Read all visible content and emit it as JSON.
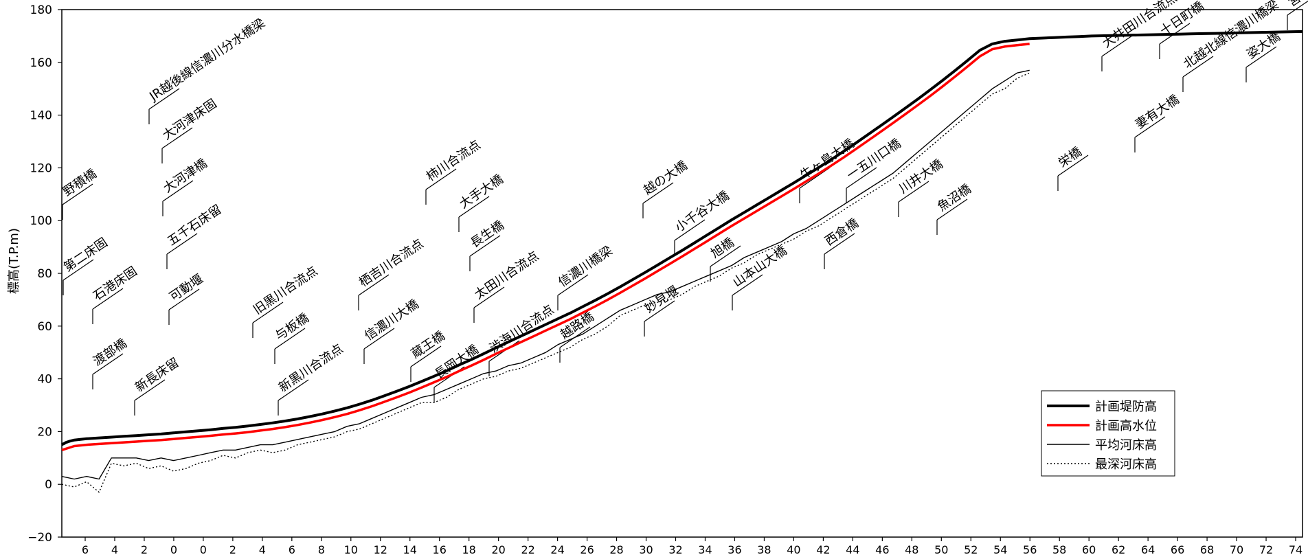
{
  "chart_data": {
    "type": "line",
    "title": "",
    "ylabel": "標高(T.P.m)",
    "xlabel": "",
    "ylim": [
      -20,
      180
    ],
    "yticks": [
      -20,
      0,
      20,
      40,
      60,
      80,
      100,
      120,
      140,
      160,
      180
    ],
    "x_tick_labels": [
      "6",
      "4",
      "2",
      "0",
      "0",
      "2",
      "4",
      "6",
      "8",
      "10",
      "12",
      "14",
      "16",
      "18",
      "20",
      "22",
      "24",
      "26",
      "28",
      "30",
      "32",
      "34",
      "36",
      "38",
      "40",
      "42",
      "44",
      "46",
      "48",
      "50",
      "52",
      "54",
      "56",
      "58",
      "60",
      "62",
      "64",
      "66",
      "68",
      "70",
      "72",
      "74"
    ],
    "x_note": "distance axis (km); left segment counts down 6→0 on a branch, main segment 0→74",
    "legend": {
      "position": "lower-right",
      "items": [
        {
          "name": "計画堤防高",
          "color": "#000000",
          "style": "thick-solid"
        },
        {
          "name": "計画高水位",
          "color": "#ff0000",
          "style": "thick-solid"
        },
        {
          "name": "平均河床高",
          "color": "#000000",
          "style": "thin-solid"
        },
        {
          "name": "最深河床高",
          "color": "#000000",
          "style": "dotted"
        }
      ]
    },
    "grid": false,
    "landmark_labels": [
      "野積橋",
      "第二床固",
      "石港床固",
      "渡部橋",
      "JR越後線信濃川分水橋梁",
      "大河津床固",
      "大河津橋",
      "五千石床留",
      "可動堰",
      "新長床留",
      "旧黒川合流点",
      "与板橋",
      "新黒川合流点",
      "栖吉川合流点",
      "信濃川大橋",
      "蔵王橋",
      "柿川合流点",
      "大手大橋",
      "長生橋",
      "太田川合流点",
      "長岡大橋",
      "渋海川合流点",
      "信濃川橋梁",
      "越路橋",
      "越の大橋",
      "小千谷大橋",
      "妙見堰",
      "旭橋",
      "山本山大橋",
      "牛ヶ島大橋",
      "一五川口橋",
      "西倉橋",
      "川井大橋",
      "魚沼橋",
      "栄橋",
      "大井田川合流点",
      "十日町橋",
      "妻有大橋",
      "北越北線信濃川橋梁",
      "姿大橋",
      "宮中橋"
    ],
    "series": [
      {
        "name": "計画堤防高",
        "x": [
          0,
          1,
          2,
          3,
          4,
          6,
          10,
          20,
          30,
          40,
          50,
          60,
          70,
          80,
          90,
          100,
          110,
          120,
          130,
          140,
          150,
          160,
          170,
          180,
          190,
          200,
          210,
          220,
          230,
          240,
          250,
          260,
          270,
          280,
          290,
          300,
          310,
          320,
          330,
          340,
          350,
          360,
          370,
          380,
          390,
          400,
          410,
          420,
          430,
          440,
          450,
          460,
          470,
          480,
          490,
          500,
          510,
          520,
          530,
          540,
          550,
          560,
          570,
          580,
          590,
          600,
          610,
          620,
          630,
          640,
          650,
          660,
          670,
          680,
          690,
          700,
          710,
          720,
          730,
          740,
          750,
          760,
          770,
          780,
          790,
          800,
          810,
          820,
          830,
          840,
          850,
          860,
          870,
          880,
          890,
          900,
          910,
          920,
          930,
          940,
          950,
          960,
          970,
          980,
          990,
          1000
        ],
        "y": [
          15.0,
          15.3,
          15.5,
          15.8,
          16.0,
          16.3,
          16.8,
          17.3,
          17.6,
          17.9,
          18.2,
          18.5,
          18.8,
          19.1,
          19.5,
          19.9,
          20.3,
          20.7,
          21.2,
          21.6,
          22.1,
          22.7,
          23.3,
          24.0,
          24.8,
          25.7,
          26.7,
          27.8,
          29.0,
          30.4,
          31.9,
          33.6,
          35.3,
          37.1,
          39.0,
          41.0,
          43.0,
          45.2,
          47.3,
          49.5,
          51.8,
          54.0,
          56.2,
          58.4,
          60.6,
          62.8,
          65.0,
          67.4,
          69.8,
          72.3,
          74.9,
          77.6,
          80.3,
          83.1,
          85.9,
          88.7,
          91.6,
          94.5,
          97.4,
          100.3,
          103.1,
          105.9,
          108.7,
          111.5,
          114.3,
          117.2,
          120.1,
          123.1,
          126.2,
          129.4,
          132.7,
          136.0,
          139.3,
          142.7,
          146.1,
          149.6,
          153.2,
          156.9,
          160.7,
          164.6,
          167.0,
          168.0,
          168.5,
          169.0,
          169.2,
          169.4,
          169.6,
          169.8,
          170.0,
          170.1,
          170.2,
          170.3,
          170.4,
          170.5,
          170.6,
          170.7,
          170.8,
          170.9,
          171.0,
          171.1,
          171.2,
          171.3,
          171.4,
          171.5,
          171.6,
          171.7
        ]
      },
      {
        "name": "計画高水位",
        "x": [
          0,
          10,
          20,
          30,
          40,
          50,
          60,
          70,
          80,
          90,
          100,
          110,
          120,
          130,
          140,
          150,
          160,
          170,
          180,
          190,
          200,
          210,
          220,
          230,
          240,
          250,
          260,
          270,
          280,
          290,
          300,
          310,
          320,
          330,
          340,
          350,
          360,
          370,
          380,
          390,
          400,
          410,
          420,
          430,
          440,
          450,
          460,
          470,
          480,
          490,
          500,
          510,
          520,
          530,
          540,
          550,
          560,
          570,
          580,
          590,
          600,
          610,
          620,
          630,
          640,
          650,
          660,
          670,
          680,
          690,
          700,
          710,
          720,
          730,
          740,
          750,
          760,
          770,
          780
        ],
        "y": [
          13.0,
          14.5,
          15.0,
          15.3,
          15.6,
          15.9,
          16.2,
          16.5,
          16.8,
          17.2,
          17.6,
          18.0,
          18.4,
          18.9,
          19.3,
          19.8,
          20.4,
          21.0,
          21.7,
          22.5,
          23.4,
          24.4,
          25.5,
          26.7,
          28.1,
          29.6,
          31.3,
          33.0,
          34.8,
          36.7,
          38.7,
          40.7,
          42.9,
          45.0,
          47.2,
          49.5,
          51.7,
          53.9,
          56.1,
          58.3,
          60.5,
          62.7,
          65.1,
          67.5,
          70.0,
          72.6,
          75.3,
          78.0,
          80.8,
          83.6,
          86.4,
          89.3,
          92.2,
          95.1,
          98.0,
          100.8,
          103.6,
          106.4,
          109.2,
          112.0,
          114.9,
          117.8,
          120.8,
          123.9,
          127.1,
          130.4,
          133.7,
          137.0,
          140.4,
          143.8,
          147.3,
          150.9,
          154.6,
          158.4,
          162.3,
          165.0,
          166.0,
          166.5,
          167.0
        ]
      },
      {
        "name": "平均河床高",
        "x": [
          0,
          10,
          20,
          30,
          40,
          50,
          60,
          70,
          80,
          90,
          100,
          110,
          120,
          130,
          140,
          150,
          160,
          170,
          180,
          190,
          200,
          210,
          220,
          230,
          240,
          250,
          260,
          270,
          280,
          290,
          300,
          310,
          320,
          330,
          340,
          350,
          360,
          370,
          380,
          390,
          400,
          410,
          420,
          430,
          440,
          450,
          460,
          470,
          480,
          490,
          500,
          510,
          520,
          530,
          540,
          550,
          560,
          570,
          580,
          590,
          600,
          610,
          620,
          630,
          640,
          650,
          660,
          670,
          680,
          690,
          700,
          710,
          720,
          730,
          740,
          750,
          760,
          770,
          780
        ],
        "y": [
          3,
          2,
          3,
          2,
          10,
          10,
          10,
          9,
          10,
          9,
          10,
          11,
          12,
          13,
          13,
          14,
          15,
          15,
          16,
          17,
          18,
          19,
          20,
          22,
          23,
          25,
          27,
          29,
          31,
          33,
          34,
          36,
          38,
          40,
          42,
          43,
          45,
          46,
          48,
          50,
          53,
          55,
          57,
          60,
          63,
          66,
          68,
          70,
          72,
          73,
          75,
          77,
          79,
          81,
          83,
          86,
          88,
          90,
          92,
          95,
          97,
          100,
          103,
          106,
          109,
          112,
          115,
          118,
          122,
          126,
          130,
          134,
          138,
          142,
          146,
          150,
          153,
          156,
          157
        ]
      },
      {
        "name": "最深河床高",
        "x": [
          0,
          10,
          20,
          30,
          40,
          50,
          60,
          70,
          80,
          90,
          100,
          110,
          120,
          130,
          140,
          150,
          160,
          170,
          180,
          190,
          200,
          210,
          220,
          230,
          240,
          250,
          260,
          270,
          280,
          290,
          300,
          310,
          320,
          330,
          340,
          350,
          360,
          370,
          380,
          390,
          400,
          410,
          420,
          430,
          440,
          450,
          460,
          470,
          480,
          490,
          500,
          510,
          520,
          530,
          540,
          550,
          560,
          570,
          580,
          590,
          600,
          610,
          620,
          630,
          640,
          650,
          660,
          670,
          680,
          690,
          700,
          710,
          720,
          730,
          740,
          750,
          760,
          770,
          780
        ],
        "y": [
          0,
          -1,
          1,
          -3,
          8,
          7,
          8,
          6,
          7,
          5,
          6,
          8,
          9,
          11,
          10,
          12,
          13,
          12,
          13,
          15,
          16,
          17,
          18,
          20,
          21,
          23,
          25,
          27,
          29,
          31,
          31,
          33,
          36,
          38,
          40,
          41,
          43,
          44,
          46,
          48,
          50,
          52,
          55,
          57,
          60,
          64,
          66,
          68,
          69,
          70,
          72,
          75,
          77,
          79,
          82,
          84,
          87,
          89,
          91,
          93,
          96,
          98,
          101,
          104,
          107,
          110,
          113,
          116,
          120,
          124,
          128,
          132,
          136,
          140,
          144,
          148,
          150,
          154,
          156
        ]
      }
    ]
  }
}
